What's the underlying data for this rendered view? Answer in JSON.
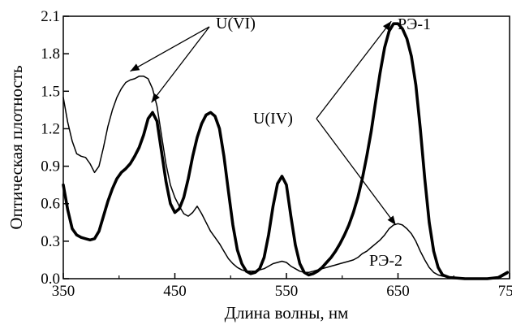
{
  "chart_data": {
    "type": "line",
    "title": "",
    "xlabel": "Длина волны, нм",
    "ylabel": "Оптическая плотность",
    "xlim": [
      350,
      750
    ],
    "ylim": [
      0.0,
      2.1
    ],
    "x_ticks": [
      350,
      450,
      550,
      650,
      750
    ],
    "x_tick_labels": [
      "350",
      "450",
      "550",
      "650",
      "750"
    ],
    "y_ticks": [
      0.0,
      0.3,
      0.6,
      0.9,
      1.2,
      1.5,
      1.8,
      2.1
    ],
    "y_tick_labels": [
      "0.0",
      "0.3",
      "0.6",
      "0.9",
      "1.2",
      "1.5",
      "1.8",
      "2.1"
    ],
    "grid": false,
    "legend": "none",
    "series": [
      {
        "name": "РЭ-1",
        "line_weight": "thick",
        "points": [
          [
            350,
            0.75
          ],
          [
            354,
            0.55
          ],
          [
            358,
            0.4
          ],
          [
            362,
            0.35
          ],
          [
            366,
            0.33
          ],
          [
            370,
            0.32
          ],
          [
            374,
            0.31
          ],
          [
            378,
            0.32
          ],
          [
            382,
            0.38
          ],
          [
            386,
            0.5
          ],
          [
            390,
            0.62
          ],
          [
            394,
            0.72
          ],
          [
            398,
            0.8
          ],
          [
            402,
            0.85
          ],
          [
            406,
            0.88
          ],
          [
            410,
            0.92
          ],
          [
            414,
            0.98
          ],
          [
            418,
            1.05
          ],
          [
            422,
            1.15
          ],
          [
            426,
            1.28
          ],
          [
            430,
            1.33
          ],
          [
            434,
            1.26
          ],
          [
            438,
            1.02
          ],
          [
            442,
            0.78
          ],
          [
            446,
            0.6
          ],
          [
            450,
            0.53
          ],
          [
            454,
            0.56
          ],
          [
            458,
            0.65
          ],
          [
            462,
            0.8
          ],
          [
            466,
            0.98
          ],
          [
            470,
            1.13
          ],
          [
            474,
            1.24
          ],
          [
            478,
            1.31
          ],
          [
            482,
            1.33
          ],
          [
            486,
            1.3
          ],
          [
            490,
            1.2
          ],
          [
            494,
            0.98
          ],
          [
            498,
            0.7
          ],
          [
            502,
            0.43
          ],
          [
            506,
            0.23
          ],
          [
            510,
            0.12
          ],
          [
            514,
            0.06
          ],
          [
            518,
            0.04
          ],
          [
            522,
            0.05
          ],
          [
            526,
            0.08
          ],
          [
            530,
            0.17
          ],
          [
            534,
            0.35
          ],
          [
            538,
            0.58
          ],
          [
            542,
            0.76
          ],
          [
            546,
            0.82
          ],
          [
            550,
            0.75
          ],
          [
            554,
            0.5
          ],
          [
            558,
            0.27
          ],
          [
            562,
            0.12
          ],
          [
            566,
            0.05
          ],
          [
            570,
            0.03
          ],
          [
            574,
            0.04
          ],
          [
            578,
            0.06
          ],
          [
            582,
            0.09
          ],
          [
            586,
            0.13
          ],
          [
            590,
            0.17
          ],
          [
            594,
            0.22
          ],
          [
            598,
            0.28
          ],
          [
            602,
            0.35
          ],
          [
            606,
            0.43
          ],
          [
            610,
            0.53
          ],
          [
            614,
            0.65
          ],
          [
            618,
            0.8
          ],
          [
            622,
            0.98
          ],
          [
            626,
            1.18
          ],
          [
            630,
            1.42
          ],
          [
            634,
            1.65
          ],
          [
            638,
            1.85
          ],
          [
            642,
            1.98
          ],
          [
            646,
            2.04
          ],
          [
            650,
            2.04
          ],
          [
            654,
            2.0
          ],
          [
            658,
            1.92
          ],
          [
            662,
            1.78
          ],
          [
            666,
            1.55
          ],
          [
            670,
            1.2
          ],
          [
            674,
            0.8
          ],
          [
            678,
            0.45
          ],
          [
            682,
            0.22
          ],
          [
            686,
            0.09
          ],
          [
            690,
            0.03
          ],
          [
            696,
            0.01
          ],
          [
            710,
            0.0
          ],
          [
            730,
            0.0
          ],
          [
            740,
            0.01
          ],
          [
            748,
            0.05
          ]
        ]
      },
      {
        "name": "",
        "line_weight": "thin",
        "points": [
          [
            350,
            1.45
          ],
          [
            354,
            1.25
          ],
          [
            358,
            1.1
          ],
          [
            362,
            1.0
          ],
          [
            366,
            0.98
          ],
          [
            370,
            0.97
          ],
          [
            374,
            0.92
          ],
          [
            378,
            0.85
          ],
          [
            382,
            0.9
          ],
          [
            386,
            1.05
          ],
          [
            390,
            1.22
          ],
          [
            394,
            1.35
          ],
          [
            398,
            1.45
          ],
          [
            402,
            1.52
          ],
          [
            406,
            1.57
          ],
          [
            410,
            1.59
          ],
          [
            414,
            1.6
          ],
          [
            418,
            1.62
          ],
          [
            422,
            1.62
          ],
          [
            426,
            1.6
          ],
          [
            430,
            1.52
          ],
          [
            434,
            1.38
          ],
          [
            438,
            1.15
          ],
          [
            442,
            0.92
          ],
          [
            446,
            0.75
          ],
          [
            450,
            0.65
          ],
          [
            454,
            0.58
          ],
          [
            458,
            0.52
          ],
          [
            462,
            0.5
          ],
          [
            466,
            0.53
          ],
          [
            470,
            0.58
          ],
          [
            474,
            0.52
          ],
          [
            478,
            0.45
          ],
          [
            482,
            0.38
          ],
          [
            486,
            0.33
          ],
          [
            490,
            0.28
          ],
          [
            494,
            0.22
          ],
          [
            498,
            0.16
          ],
          [
            502,
            0.12
          ],
          [
            506,
            0.09
          ],
          [
            510,
            0.07
          ],
          [
            514,
            0.06
          ],
          [
            518,
            0.06
          ],
          [
            522,
            0.06
          ],
          [
            526,
            0.07
          ],
          [
            530,
            0.08
          ],
          [
            534,
            0.1
          ],
          [
            538,
            0.12
          ],
          [
            542,
            0.13
          ],
          [
            546,
            0.14
          ],
          [
            550,
            0.13
          ],
          [
            554,
            0.1
          ],
          [
            558,
            0.08
          ],
          [
            562,
            0.06
          ],
          [
            566,
            0.05
          ],
          [
            570,
            0.05
          ],
          [
            574,
            0.06
          ],
          [
            578,
            0.07
          ],
          [
            582,
            0.08
          ],
          [
            586,
            0.09
          ],
          [
            590,
            0.1
          ],
          [
            594,
            0.11
          ],
          [
            598,
            0.12
          ],
          [
            602,
            0.13
          ],
          [
            606,
            0.14
          ],
          [
            610,
            0.15
          ],
          [
            614,
            0.17
          ],
          [
            618,
            0.2
          ],
          [
            622,
            0.22
          ],
          [
            626,
            0.25
          ],
          [
            630,
            0.28
          ],
          [
            634,
            0.31
          ],
          [
            638,
            0.35
          ],
          [
            642,
            0.4
          ],
          [
            646,
            0.43
          ],
          [
            650,
            0.44
          ],
          [
            654,
            0.43
          ],
          [
            658,
            0.4
          ],
          [
            662,
            0.36
          ],
          [
            666,
            0.3
          ],
          [
            670,
            0.22
          ],
          [
            674,
            0.15
          ],
          [
            678,
            0.09
          ],
          [
            682,
            0.05
          ],
          [
            686,
            0.03
          ],
          [
            690,
            0.02
          ],
          [
            700,
            0.01
          ],
          [
            720,
            0.0
          ],
          [
            740,
            0.0
          ],
          [
            748,
            0.04
          ]
        ]
      }
    ],
    "annotations": {
      "u6": "U(VI)",
      "re1": "РЭ-1",
      "u4": "U(IV)",
      "re2": "РЭ-2"
    }
  }
}
